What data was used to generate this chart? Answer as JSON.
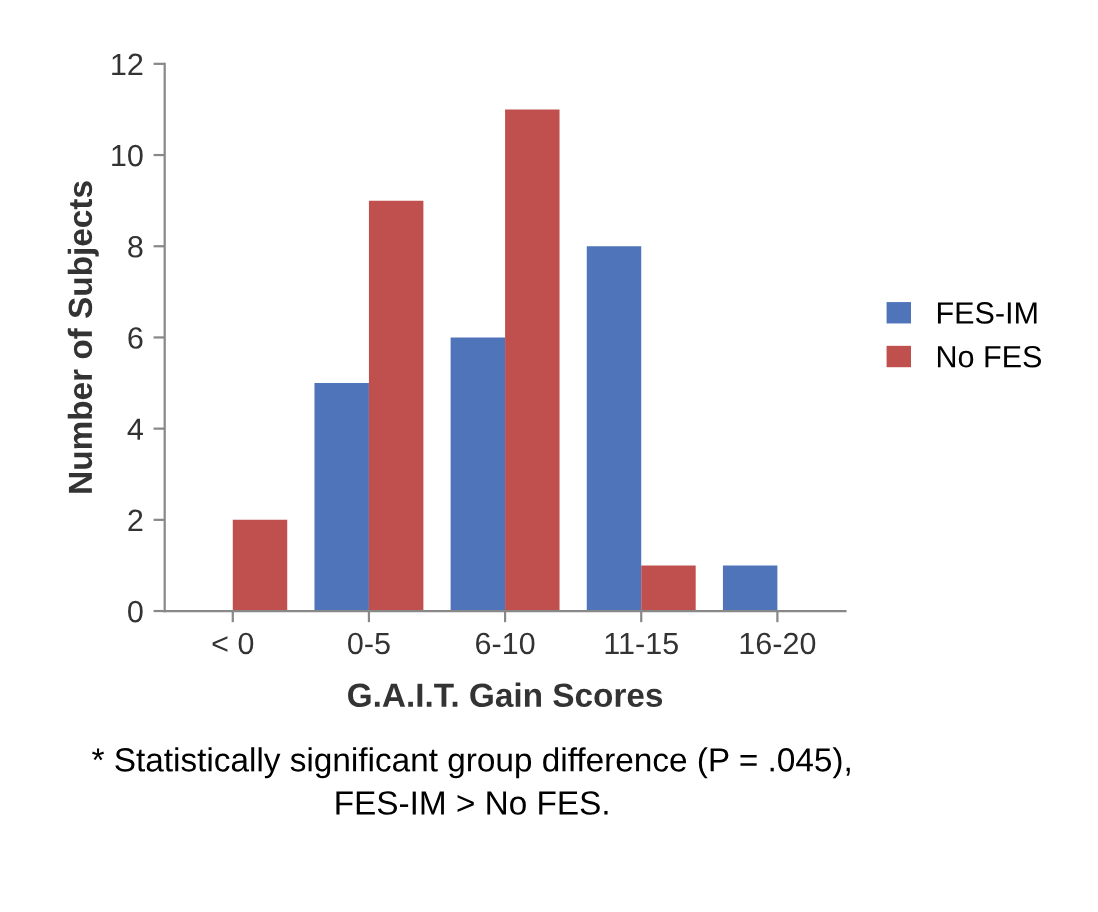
{
  "chart_data": {
    "type": "bar",
    "xlabel": "G.A.I.T. Gain Scores",
    "ylabel": "Number of Subjects",
    "categories": [
      "< 0",
      "0-5",
      "6-10",
      "11-15",
      "16-20"
    ],
    "series": [
      {
        "name": "FES-IM",
        "color": "#4f74b9",
        "values": [
          0,
          5,
          6,
          8,
          1
        ]
      },
      {
        "name": "No FES",
        "color": "#c0504d",
        "values": [
          2,
          9,
          11,
          1,
          0
        ]
      }
    ],
    "ylim": [
      0,
      12
    ],
    "yticks": [
      0,
      2,
      4,
      6,
      8,
      10,
      12
    ],
    "grid": false,
    "legend": "right",
    "annotations": [
      "* Statistically significant group difference (P = .045),\nFES-IM > No FES."
    ]
  }
}
